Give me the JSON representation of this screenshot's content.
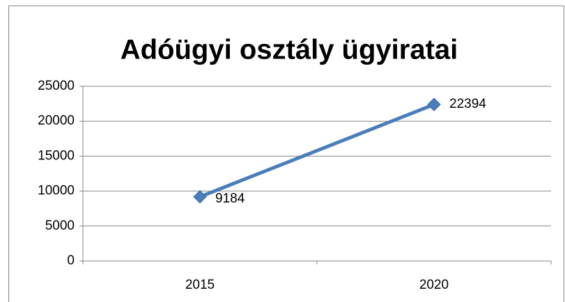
{
  "chart_data": {
    "type": "line",
    "title": "Adóügyi osztály ügyiratai",
    "categories": [
      "2015",
      "2020"
    ],
    "values": [
      9184,
      22394
    ],
    "color": "#4a7ebb",
    "ylim": [
      0,
      25000
    ],
    "yticks": [
      0,
      5000,
      10000,
      15000,
      20000,
      25000
    ],
    "grid": true
  }
}
